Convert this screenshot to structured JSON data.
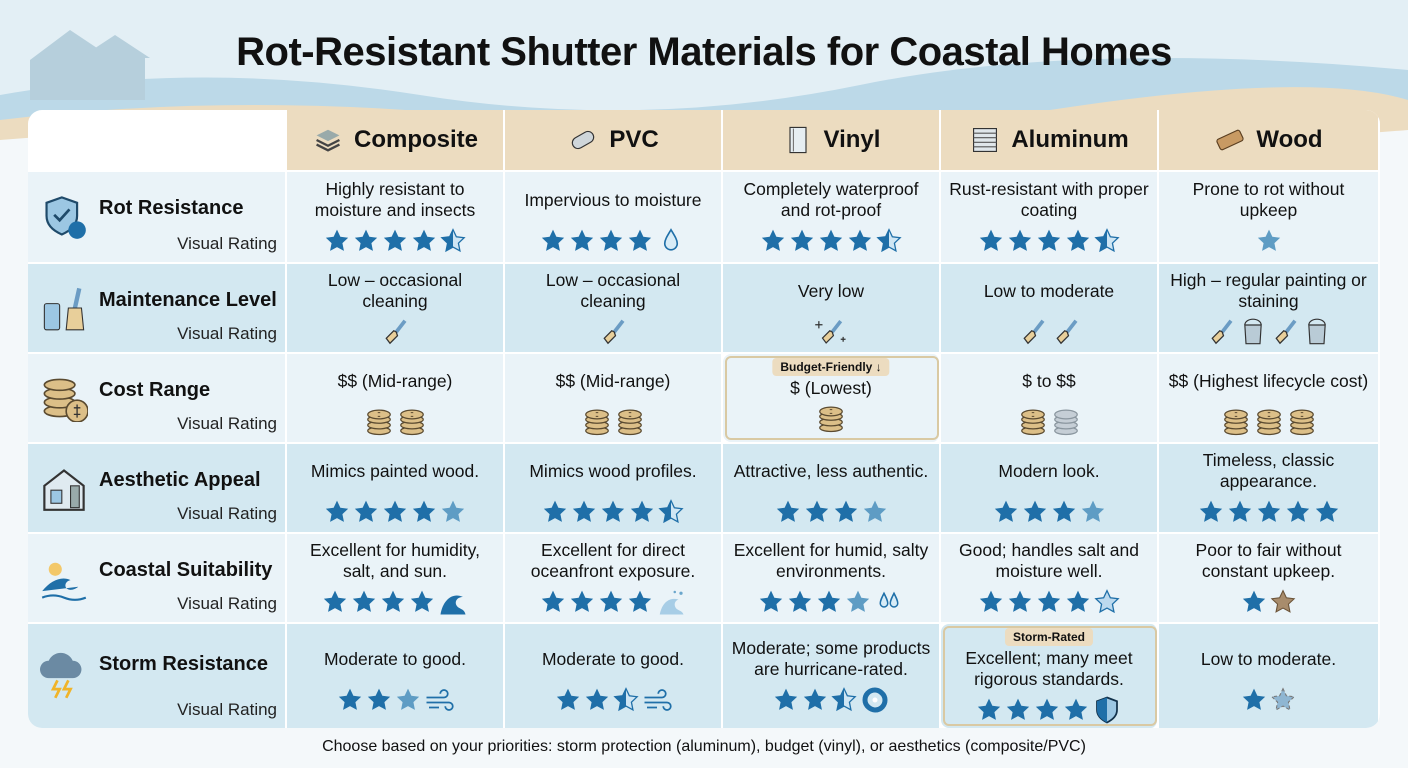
{
  "title": "Rot-Resistant Shutter Materials for Coastal Homes",
  "colors": {
    "star": "#1f6fa8",
    "star_light": "#5e9cc4",
    "header_bg": "#ecdcc0",
    "row_light": "#eaf3f8",
    "row_dark": "#d3e8f1"
  },
  "materials": [
    {
      "name": "Composite",
      "icon": "stacked-layers-icon"
    },
    {
      "name": "PVC",
      "icon": "pipe-icon"
    },
    {
      "name": "Vinyl",
      "icon": "panel-icon"
    },
    {
      "name": "Aluminum",
      "icon": "louver-icon"
    },
    {
      "name": "Wood",
      "icon": "wood-plank-icon"
    }
  ],
  "rows": [
    {
      "label": "Rot Resistance",
      "sub": "Visual Rating",
      "icon": "shield-wave-icon",
      "cells": [
        {
          "text": "Highly resistant to moisture and insects",
          "stars": [
            "f",
            "f",
            "f",
            "f",
            "h"
          ],
          "extra": ""
        },
        {
          "text": "Impervious to moisture",
          "stars": [
            "f",
            "f",
            "f",
            "f"
          ],
          "extra": "droplet-icon"
        },
        {
          "text": "Completely waterproof and rot-proof",
          "stars": [
            "f",
            "f",
            "f",
            "f",
            "h"
          ],
          "extra": ""
        },
        {
          "text": "Rust-resistant with proper coating",
          "stars": [
            "f",
            "f",
            "f",
            "f",
            "h"
          ],
          "extra": ""
        },
        {
          "text": "Prone to rot without upkeep",
          "stars": [
            "l"
          ],
          "extra": ""
        }
      ]
    },
    {
      "label": "Maintenance Level",
      "sub": "Visual Rating",
      "icon": "spray-brush-icon",
      "cells": [
        {
          "text": "Low – occasional cleaning",
          "icons": [
            "brush"
          ]
        },
        {
          "text": "Low – occasional cleaning",
          "icons": [
            "brush"
          ]
        },
        {
          "text": "Very low",
          "icons": [
            "sparkle-brush"
          ]
        },
        {
          "text": "Low to moderate",
          "icons": [
            "brush",
            "brush"
          ]
        },
        {
          "text": "High – regular painting or staining",
          "icons": [
            "brush",
            "bucket",
            "brush",
            "bucket"
          ]
        }
      ]
    },
    {
      "label": "Cost Range",
      "sub": "Visual Rating",
      "icon": "coins-icon",
      "cells": [
        {
          "text": "$$ (Mid-range)",
          "icons": [
            "coin",
            "coin"
          ]
        },
        {
          "text": "$$ (Mid-range)",
          "icons": [
            "coin",
            "coin"
          ]
        },
        {
          "text": "$ (Lowest)",
          "icons": [
            "coin"
          ],
          "badge": "Budget-Friendly ↓"
        },
        {
          "text": "$ to $$",
          "icons": [
            "coin",
            "coin-grey"
          ]
        },
        {
          "text": "$$ (Highest lifecycle cost)",
          "icons": [
            "coin",
            "coin",
            "coin"
          ]
        }
      ]
    },
    {
      "label": "Aesthetic Appeal",
      "sub": "Visual Rating",
      "icon": "house-shutter-icon",
      "cells": [
        {
          "text": "Mimics painted wood.",
          "stars": [
            "f",
            "f",
            "f",
            "f",
            "l"
          ],
          "extra": ""
        },
        {
          "text": "Mimics wood profiles.",
          "stars": [
            "f",
            "f",
            "f",
            "f",
            "h"
          ],
          "extra": ""
        },
        {
          "text": "Attractive, less authentic.",
          "stars": [
            "f",
            "f",
            "f",
            "l"
          ],
          "extra": ""
        },
        {
          "text": "Modern look.",
          "stars": [
            "f",
            "f",
            "f",
            "l"
          ],
          "extra": ""
        },
        {
          "text": "Timeless, classic appearance.",
          "stars": [
            "f",
            "f",
            "f",
            "f",
            "f"
          ],
          "extra": ""
        }
      ]
    },
    {
      "label": "Coastal Suitability",
      "sub": "Visual Rating",
      "icon": "sun-wave-icon",
      "cells": [
        {
          "text": "Excellent for humidity, salt, and sun.",
          "stars": [
            "f",
            "f",
            "f",
            "f"
          ],
          "extra": "wave-icon"
        },
        {
          "text": "Excellent for direct oceanfront exposure.",
          "stars": [
            "f",
            "f",
            "f",
            "f"
          ],
          "extra": "spray-wave-icon"
        },
        {
          "text": "Excellent for humid, salty environments.",
          "stars": [
            "f",
            "f",
            "f",
            "l"
          ],
          "extra": "droplets-icon"
        },
        {
          "text": "Good; handles salt and moisture well.",
          "stars": [
            "f",
            "f",
            "f",
            "f",
            "o"
          ],
          "extra": ""
        },
        {
          "text": "Poor to fair without constant upkeep.",
          "stars": [
            "f",
            "w"
          ],
          "extra": ""
        }
      ]
    },
    {
      "label": "Storm Resistance",
      "sub": "Visual Rating",
      "icon": "storm-cloud-icon",
      "cells": [
        {
          "text": "Moderate to good.",
          "stars": [
            "f",
            "f",
            "l"
          ],
          "extra": "wind-icon"
        },
        {
          "text": "Moderate to good.",
          "stars": [
            "f",
            "f",
            "h"
          ],
          "extra": "wind-icon"
        },
        {
          "text": "Moderate; some products are hurricane-rated.",
          "stars": [
            "f",
            "f",
            "h"
          ],
          "extra": "hurricane-icon"
        },
        {
          "text": "Excellent; many meet rigorous standards.",
          "stars": [
            "f",
            "f",
            "f",
            "f"
          ],
          "extra": "shield-icon",
          "badge": "Storm-Rated"
        },
        {
          "text": "Low to moderate.",
          "stars": [
            "f",
            "b"
          ],
          "extra": ""
        }
      ]
    }
  ],
  "footer": "Choose based on your priorities: storm protection (aluminum), budget (vinyl), or aesthetics (composite/PVC)"
}
